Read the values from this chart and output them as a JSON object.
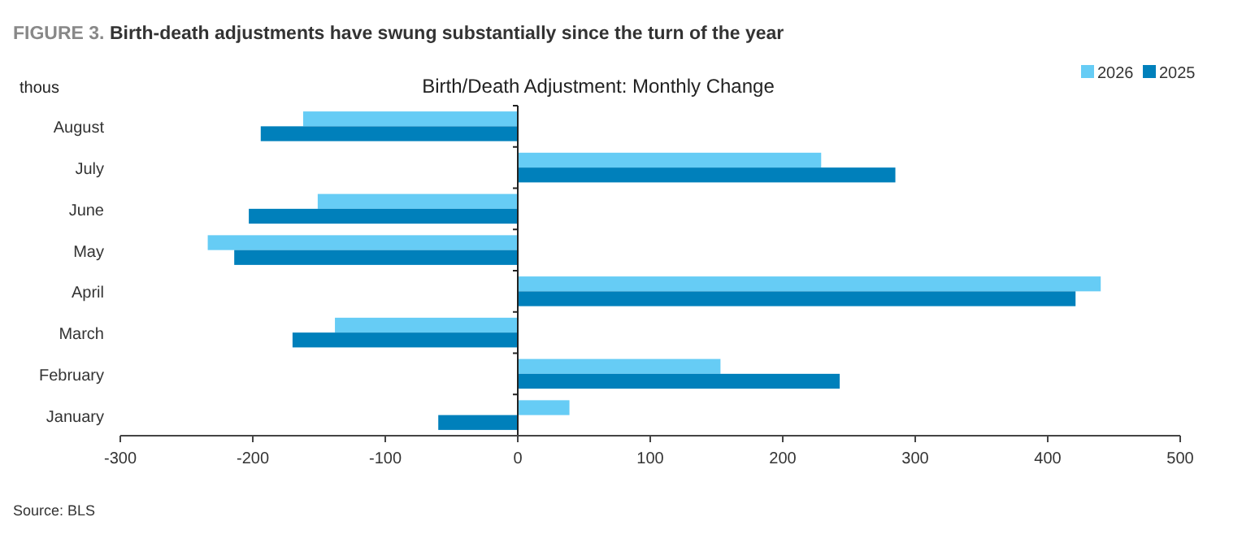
{
  "chart_data": {
    "type": "bar",
    "orientation": "horizontal",
    "title": "FIGURE 3. Birth-death adjustments have swung substantially since the turn of the year",
    "subtitle": "Birth/Death Adjustment: Monthly Change",
    "xlabel": "thous",
    "categories": [
      "August",
      "July",
      "June",
      "May",
      "April",
      "March",
      "February",
      "January"
    ],
    "series": [
      {
        "name": "2026",
        "color": "#66ccf5",
        "values": [
          -162,
          229,
          -151,
          -234,
          440,
          -138,
          153,
          39
        ]
      },
      {
        "name": "2025",
        "color": "#0080bb",
        "values": [
          -194,
          285,
          -203,
          -214,
          421,
          -170,
          243,
          -60
        ]
      }
    ],
    "xlim": [
      -300,
      500
    ],
    "xticks": [
      -300,
      -200,
      -100,
      0,
      100,
      200,
      300,
      400,
      500
    ],
    "legend": "top right",
    "annotations": [
      "Source: BLS"
    ]
  }
}
